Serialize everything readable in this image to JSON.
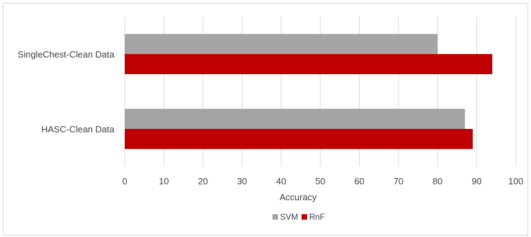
{
  "chart_data": {
    "type": "bar",
    "orientation": "horizontal",
    "categories": [
      "SingleChest-Clean Data",
      "HASC-Clean Data"
    ],
    "series": [
      {
        "name": "SVM",
        "values": [
          80,
          87
        ],
        "color": "#a5a5a5"
      },
      {
        "name": "RnF",
        "values": [
          94,
          89
        ],
        "color": "#c00000"
      }
    ],
    "xlabel": "Accuracy",
    "ylabel": "",
    "xlim": [
      0,
      100
    ],
    "x_ticks": [
      0,
      10,
      20,
      30,
      40,
      50,
      60,
      70,
      80,
      90,
      100
    ],
    "grid": true,
    "legend": "bottom"
  }
}
